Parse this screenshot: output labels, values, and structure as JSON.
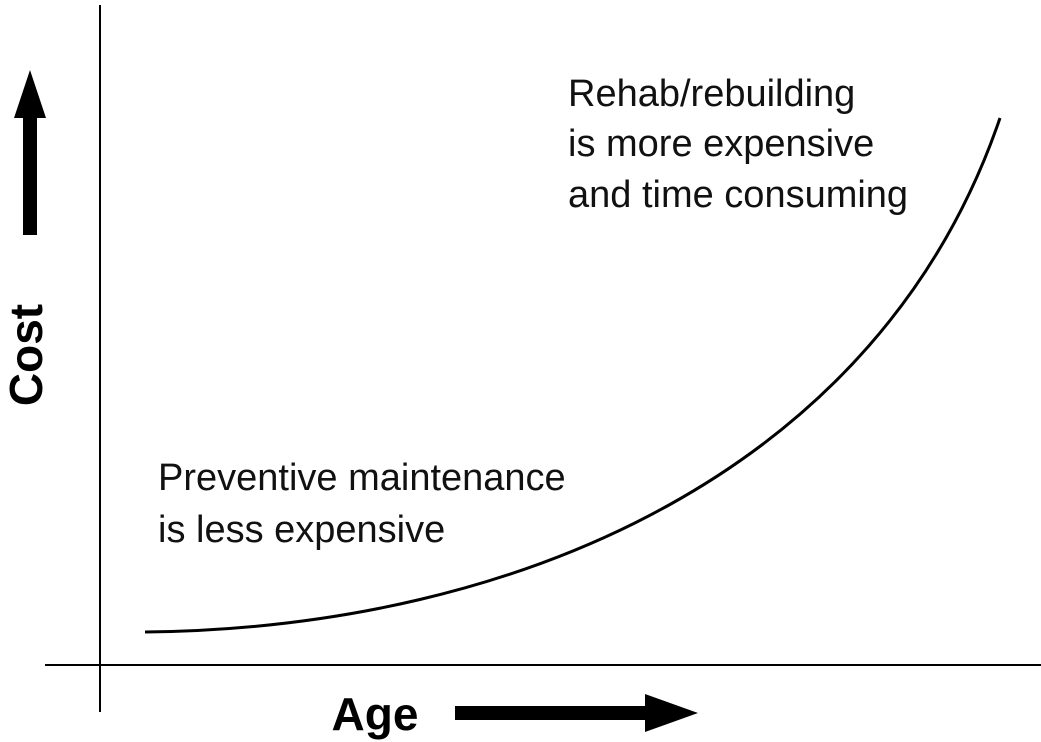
{
  "axis_labels": {
    "y": "Cost",
    "x": "Age"
  },
  "annotations": [
    {
      "lines": [
        "Rehab/rebuilding",
        "is more expensive",
        "and time consuming"
      ]
    },
    {
      "lines": [
        "Preventive maintenance",
        "is less expensive"
      ]
    }
  ]
}
